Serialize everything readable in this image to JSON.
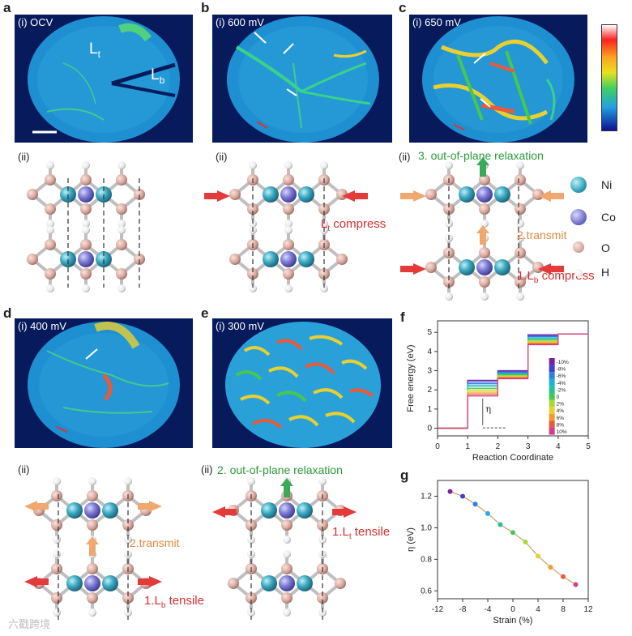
{
  "panels": {
    "a": {
      "letter": "a",
      "map_tag": "(i) OCV",
      "label_t": "L",
      "label_t_sub": "t",
      "label_b": "L",
      "label_b_sub": "b",
      "struct_tag": "(ii)"
    },
    "b": {
      "letter": "b",
      "map_tag": "(i) 600 mV",
      "struct_tag": "(ii)",
      "annot_main": "L",
      "annot_sub": "t",
      "annot_rest": " compress"
    },
    "c": {
      "letter": "c",
      "map_tag": "(i) 650 mV",
      "struct_tag": "(ii)",
      "step3": "3. out-of-plane relaxation",
      "step2": "2.transmit",
      "step1_main": "1.L",
      "step1_sub": "b",
      "step1_rest": " compress"
    },
    "d": {
      "letter": "d",
      "map_tag": "(i) 400 mV",
      "struct_tag": "(ii)",
      "step2": "2.transmit",
      "step1_main": "1.L",
      "step1_sub": "b",
      "step1_rest": " tensile"
    },
    "e": {
      "letter": "e",
      "map_tag": "(i) 300 mV",
      "struct_tag": "(ii)",
      "step2": "2. out-of-plane relaxation",
      "step1_main": "1.L",
      "step1_sub": "t",
      "step1_rest": " tensile"
    },
    "f": {
      "letter": "f"
    },
    "g": {
      "letter": "g"
    }
  },
  "atom_legend": [
    {
      "label": "Ni",
      "color": "#3aa7bf"
    },
    {
      "label": "Co",
      "color": "#7b78d0"
    },
    {
      "label": "O",
      "color": "#d9aaa0"
    },
    {
      "label": "H",
      "color": "#f2f2f2"
    }
  ],
  "watermark": "六戳跨境",
  "chart_data": [
    {
      "type": "line",
      "panel": "f",
      "xlabel": "Reaction Coordinate",
      "ylabel": "Free energy (eV)",
      "xlim": [
        0,
        5
      ],
      "ylim": [
        -0.4,
        5.6
      ],
      "xticks": [
        0,
        1,
        2,
        3,
        4,
        5
      ],
      "yticks": [
        0,
        1,
        2,
        3,
        4,
        5
      ],
      "annotation": "η",
      "legend_position": "right",
      "series": [
        {
          "name": "-10%",
          "color": "#7a1fa2",
          "levels": [
            0,
            2.5,
            3.0,
            4.88,
            4.92
          ]
        },
        {
          "name": "-8%",
          "color": "#3f3fd0",
          "levels": [
            0,
            2.42,
            2.95,
            4.83,
            4.92
          ]
        },
        {
          "name": "-6%",
          "color": "#2a80e0",
          "levels": [
            0,
            2.33,
            2.9,
            4.78,
            4.92
          ]
        },
        {
          "name": "-4%",
          "color": "#1fb0d8",
          "levels": [
            0,
            2.25,
            2.86,
            4.72,
            4.92
          ]
        },
        {
          "name": "-2%",
          "color": "#22c2a0",
          "levels": [
            0,
            2.17,
            2.82,
            4.67,
            4.92
          ]
        },
        {
          "name": "0",
          "color": "#46c850",
          "levels": [
            0,
            2.08,
            2.78,
            4.61,
            4.92
          ]
        },
        {
          "name": "2%",
          "color": "#a8d838",
          "levels": [
            0,
            2.0,
            2.74,
            4.55,
            4.92
          ]
        },
        {
          "name": "4%",
          "color": "#e8d030",
          "levels": [
            0,
            1.92,
            2.7,
            4.5,
            4.92
          ]
        },
        {
          "name": "6%",
          "color": "#f09a30",
          "levels": [
            0,
            1.84,
            2.66,
            4.45,
            4.92
          ]
        },
        {
          "name": "8%",
          "color": "#e85a3a",
          "levels": [
            0,
            1.76,
            2.62,
            4.4,
            4.92
          ]
        },
        {
          "name": "10%",
          "color": "#d83a8a",
          "levels": [
            0,
            1.68,
            2.58,
            4.35,
            4.92
          ]
        }
      ]
    },
    {
      "type": "scatter",
      "panel": "g",
      "xlabel": "Strain (%)",
      "ylabel": "η (eV)",
      "xlim": [
        -12,
        12
      ],
      "ylim": [
        0.55,
        1.3
      ],
      "xticks": [
        -12,
        -8,
        -4,
        0,
        4,
        8,
        12
      ],
      "yticks": [
        0.6,
        0.8,
        1.0,
        1.2
      ],
      "x": [
        -10,
        -8,
        -6,
        -4,
        -2,
        0,
        2,
        4,
        6,
        8,
        10
      ],
      "y": [
        1.23,
        1.2,
        1.15,
        1.09,
        1.02,
        0.97,
        0.91,
        0.82,
        0.75,
        0.69,
        0.64
      ],
      "colors": [
        "#7a1fa2",
        "#3f3fd0",
        "#2a80e0",
        "#1fb0d8",
        "#22c2a0",
        "#46c850",
        "#a8d838",
        "#e8d030",
        "#f09a30",
        "#e85a3a",
        "#d83a8a"
      ]
    }
  ]
}
